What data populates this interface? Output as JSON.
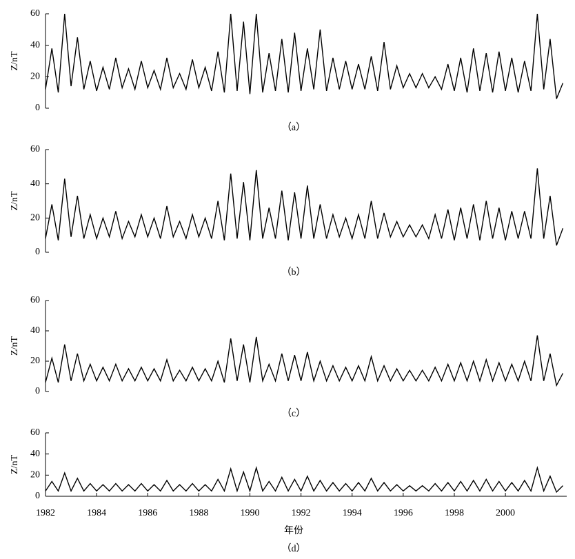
{
  "chart_data": [
    {
      "type": "line",
      "caption": "（a）",
      "ylabel": "Z/nT",
      "color": "#000000",
      "x": [
        1982,
        1982.25,
        1982.5,
        1982.75,
        1983,
        1983.25,
        1983.5,
        1983.75,
        1984,
        1984.25,
        1984.5,
        1984.75,
        1985,
        1985.25,
        1985.5,
        1985.75,
        1986,
        1986.25,
        1986.5,
        1986.75,
        1987,
        1987.25,
        1987.5,
        1987.75,
        1988,
        1988.25,
        1988.5,
        1988.75,
        1989,
        1989.25,
        1989.5,
        1989.75,
        1990,
        1990.25,
        1990.5,
        1990.75,
        1991,
        1991.25,
        1991.5,
        1991.75,
        1992,
        1992.25,
        1992.5,
        1992.75,
        1993,
        1993.25,
        1993.5,
        1993.75,
        1994,
        1994.25,
        1994.5,
        1994.75,
        1995,
        1995.25,
        1995.5,
        1995.75,
        1996,
        1996.25,
        1996.5,
        1996.75,
        1997,
        1997.25,
        1997.5,
        1997.75,
        1998,
        1998.25,
        1998.5,
        1998.75,
        1999,
        1999.25,
        1999.5,
        1999.75,
        2000,
        2000.25,
        2000.5,
        2000.75,
        2001,
        2001.25,
        2001.5,
        2001.75,
        2002,
        2002.25
      ],
      "values": [
        12,
        38,
        10,
        60,
        14,
        45,
        12,
        30,
        11,
        26,
        12,
        32,
        13,
        25,
        12,
        30,
        13,
        24,
        12,
        32,
        13,
        22,
        12,
        31,
        13,
        26,
        11,
        36,
        10,
        60,
        11,
        55,
        9,
        60,
        10,
        35,
        11,
        44,
        10,
        48,
        11,
        38,
        12,
        50,
        11,
        32,
        12,
        30,
        12,
        28,
        12,
        33,
        11,
        42,
        12,
        27,
        13,
        22,
        13,
        22,
        13,
        20,
        12,
        28,
        11,
        32,
        10,
        38,
        11,
        35,
        10,
        36,
        11,
        32,
        10,
        30,
        11,
        60,
        12,
        44,
        6,
        16
      ],
      "xlim": [
        1982,
        2002.4
      ],
      "ylim": [
        0,
        60
      ],
      "yticks": [
        0,
        20,
        40,
        60
      ]
    },
    {
      "type": "line",
      "caption": "（b）",
      "ylabel": "Z/nT",
      "color": "#000000",
      "x": [
        1982,
        1982.25,
        1982.5,
        1982.75,
        1983,
        1983.25,
        1983.5,
        1983.75,
        1984,
        1984.25,
        1984.5,
        1984.75,
        1985,
        1985.25,
        1985.5,
        1985.75,
        1986,
        1986.25,
        1986.5,
        1986.75,
        1987,
        1987.25,
        1987.5,
        1987.75,
        1988,
        1988.25,
        1988.5,
        1988.75,
        1989,
        1989.25,
        1989.5,
        1989.75,
        1990,
        1990.25,
        1990.5,
        1990.75,
        1991,
        1991.25,
        1991.5,
        1991.75,
        1992,
        1992.25,
        1992.5,
        1992.75,
        1993,
        1993.25,
        1993.5,
        1993.75,
        1994,
        1994.25,
        1994.5,
        1994.75,
        1995,
        1995.25,
        1995.5,
        1995.75,
        1996,
        1996.25,
        1996.5,
        1996.75,
        1997,
        1997.25,
        1997.5,
        1997.75,
        1998,
        1998.25,
        1998.5,
        1998.75,
        1999,
        1999.25,
        1999.5,
        1999.75,
        2000,
        2000.25,
        2000.5,
        2000.75,
        2001,
        2001.25,
        2001.5,
        2001.75,
        2002,
        2002.25
      ],
      "values": [
        8,
        28,
        7,
        43,
        9,
        33,
        8,
        22,
        8,
        20,
        9,
        24,
        8,
        18,
        9,
        22,
        9,
        20,
        8,
        27,
        9,
        18,
        8,
        22,
        9,
        20,
        8,
        30,
        7,
        46,
        8,
        41,
        7,
        48,
        8,
        26,
        8,
        36,
        7,
        35,
        8,
        39,
        8,
        28,
        8,
        22,
        9,
        20,
        8,
        22,
        8,
        30,
        8,
        23,
        9,
        18,
        9,
        16,
        9,
        16,
        8,
        22,
        8,
        25,
        7,
        26,
        8,
        28,
        7,
        30,
        8,
        26,
        7,
        24,
        8,
        24,
        8,
        49,
        8,
        33,
        4,
        14
      ],
      "xlim": [
        1982,
        2002.4
      ],
      "ylim": [
        0,
        60
      ],
      "yticks": [
        0,
        20,
        40,
        60
      ]
    },
    {
      "type": "line",
      "caption": "（c）",
      "ylabel": "Z/nT",
      "color": "#000000",
      "x": [
        1982,
        1982.25,
        1982.5,
        1982.75,
        1983,
        1983.25,
        1983.5,
        1983.75,
        1984,
        1984.25,
        1984.5,
        1984.75,
        1985,
        1985.25,
        1985.5,
        1985.75,
        1986,
        1986.25,
        1986.5,
        1986.75,
        1987,
        1987.25,
        1987.5,
        1987.75,
        1988,
        1988.25,
        1988.5,
        1988.75,
        1989,
        1989.25,
        1989.5,
        1989.75,
        1990,
        1990.25,
        1990.5,
        1990.75,
        1991,
        1991.25,
        1991.5,
        1991.75,
        1992,
        1992.25,
        1992.5,
        1992.75,
        1993,
        1993.25,
        1993.5,
        1993.75,
        1994,
        1994.25,
        1994.5,
        1994.75,
        1995,
        1995.25,
        1995.5,
        1995.75,
        1996,
        1996.25,
        1996.5,
        1996.75,
        1997,
        1997.25,
        1997.5,
        1997.75,
        1998,
        1998.25,
        1998.5,
        1998.75,
        1999,
        1999.25,
        1999.5,
        1999.75,
        2000,
        2000.25,
        2000.5,
        2000.75,
        2001,
        2001.25,
        2001.5,
        2001.75,
        2002,
        2002.25
      ],
      "values": [
        6,
        22,
        6,
        31,
        7,
        25,
        7,
        18,
        7,
        16,
        7,
        18,
        7,
        15,
        7,
        16,
        7,
        15,
        7,
        21,
        7,
        14,
        7,
        16,
        7,
        15,
        7,
        20,
        6,
        35,
        7,
        31,
        6,
        36,
        7,
        18,
        7,
        25,
        7,
        24,
        7,
        26,
        7,
        20,
        7,
        17,
        7,
        16,
        7,
        17,
        7,
        23,
        7,
        17,
        7,
        15,
        7,
        14,
        7,
        14,
        7,
        16,
        7,
        18,
        7,
        19,
        7,
        20,
        7,
        21,
        7,
        19,
        7,
        18,
        7,
        20,
        7,
        37,
        7,
        25,
        4,
        12
      ],
      "xlim": [
        1982,
        2002.4
      ],
      "ylim": [
        0,
        60
      ],
      "yticks": [
        0,
        20,
        40,
        60
      ]
    },
    {
      "type": "line",
      "caption": "（d）",
      "ylabel": "Z/nT",
      "xlabel": "年份",
      "color": "#000000",
      "x": [
        1982,
        1982.25,
        1982.5,
        1982.75,
        1983,
        1983.25,
        1983.5,
        1983.75,
        1984,
        1984.25,
        1984.5,
        1984.75,
        1985,
        1985.25,
        1985.5,
        1985.75,
        1986,
        1986.25,
        1986.5,
        1986.75,
        1987,
        1987.25,
        1987.5,
        1987.75,
        1988,
        1988.25,
        1988.5,
        1988.75,
        1989,
        1989.25,
        1989.5,
        1989.75,
        1990,
        1990.25,
        1990.5,
        1990.75,
        1991,
        1991.25,
        1991.5,
        1991.75,
        1992,
        1992.25,
        1992.5,
        1992.75,
        1993,
        1993.25,
        1993.5,
        1993.75,
        1994,
        1994.25,
        1994.5,
        1994.75,
        1995,
        1995.25,
        1995.5,
        1995.75,
        1996,
        1996.25,
        1996.5,
        1996.75,
        1997,
        1997.25,
        1997.5,
        1997.75,
        1998,
        1998.25,
        1998.5,
        1998.75,
        1999,
        1999.25,
        1999.5,
        1999.75,
        2000,
        2000.25,
        2000.5,
        2000.75,
        2001,
        2001.25,
        2001.5,
        2001.75,
        2002,
        2002.25
      ],
      "values": [
        5,
        14,
        5,
        22,
        5,
        17,
        5,
        12,
        5,
        11,
        5,
        12,
        5,
        11,
        5,
        12,
        5,
        11,
        5,
        15,
        5,
        11,
        5,
        12,
        5,
        11,
        5,
        16,
        5,
        26,
        5,
        23,
        5,
        27,
        5,
        14,
        5,
        18,
        5,
        16,
        5,
        19,
        5,
        15,
        5,
        13,
        5,
        12,
        5,
        13,
        5,
        17,
        5,
        13,
        5,
        11,
        5,
        10,
        5,
        10,
        5,
        12,
        5,
        13,
        5,
        14,
        5,
        15,
        5,
        16,
        5,
        14,
        5,
        13,
        5,
        15,
        5,
        27,
        5,
        19,
        4,
        10
      ],
      "xlim": [
        1982,
        2002.4
      ],
      "xticks": [
        1982,
        1984,
        1986,
        1988,
        1990,
        1992,
        1994,
        1996,
        1998,
        2000
      ],
      "ylim": [
        0,
        60
      ],
      "yticks": [
        0,
        20,
        40,
        60
      ]
    }
  ]
}
